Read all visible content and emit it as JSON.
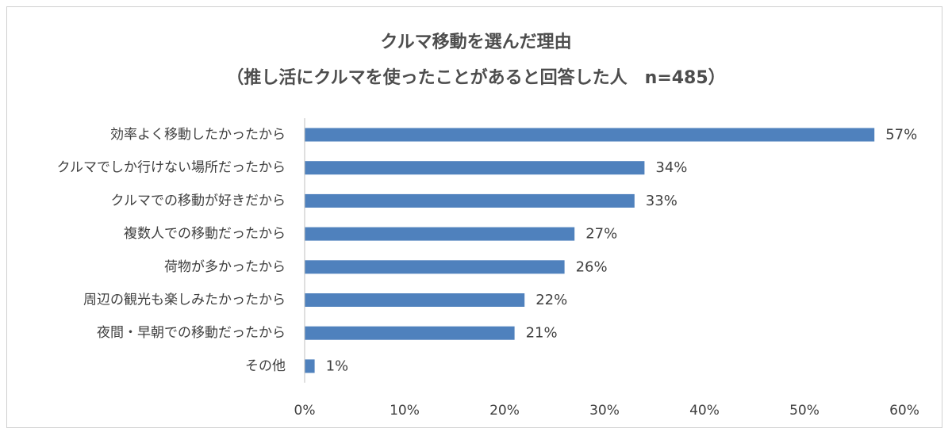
{
  "chart_data": {
    "type": "bar",
    "orientation": "horizontal",
    "title": "クルマ移動を選んだ理由",
    "subtitle": "（推し活にクルマを使ったことがあると回答した人　n=485）",
    "categories": [
      "効率よく移動したかったから",
      "クルマでしか行けない場所だったから",
      "クルマでの移動が好きだから",
      "複数人での移動だったから",
      "荷物が多かったから",
      "周辺の観光も楽しみたかったから",
      "夜間・早朝での移動だったから",
      "その他"
    ],
    "values": [
      57,
      34,
      33,
      27,
      26,
      22,
      21,
      1
    ],
    "data_labels": [
      "57%",
      "34%",
      "33%",
      "27%",
      "26%",
      "22%",
      "21%",
      "1%"
    ],
    "x_ticks": [
      0,
      10,
      20,
      30,
      40,
      50,
      60
    ],
    "x_tick_labels": [
      "0%",
      "10%",
      "20%",
      "30%",
      "40%",
      "50%",
      "60%"
    ],
    "xlim": [
      0,
      60
    ],
    "bar_color": "#4f81bd",
    "grid": false,
    "legend": "none"
  }
}
